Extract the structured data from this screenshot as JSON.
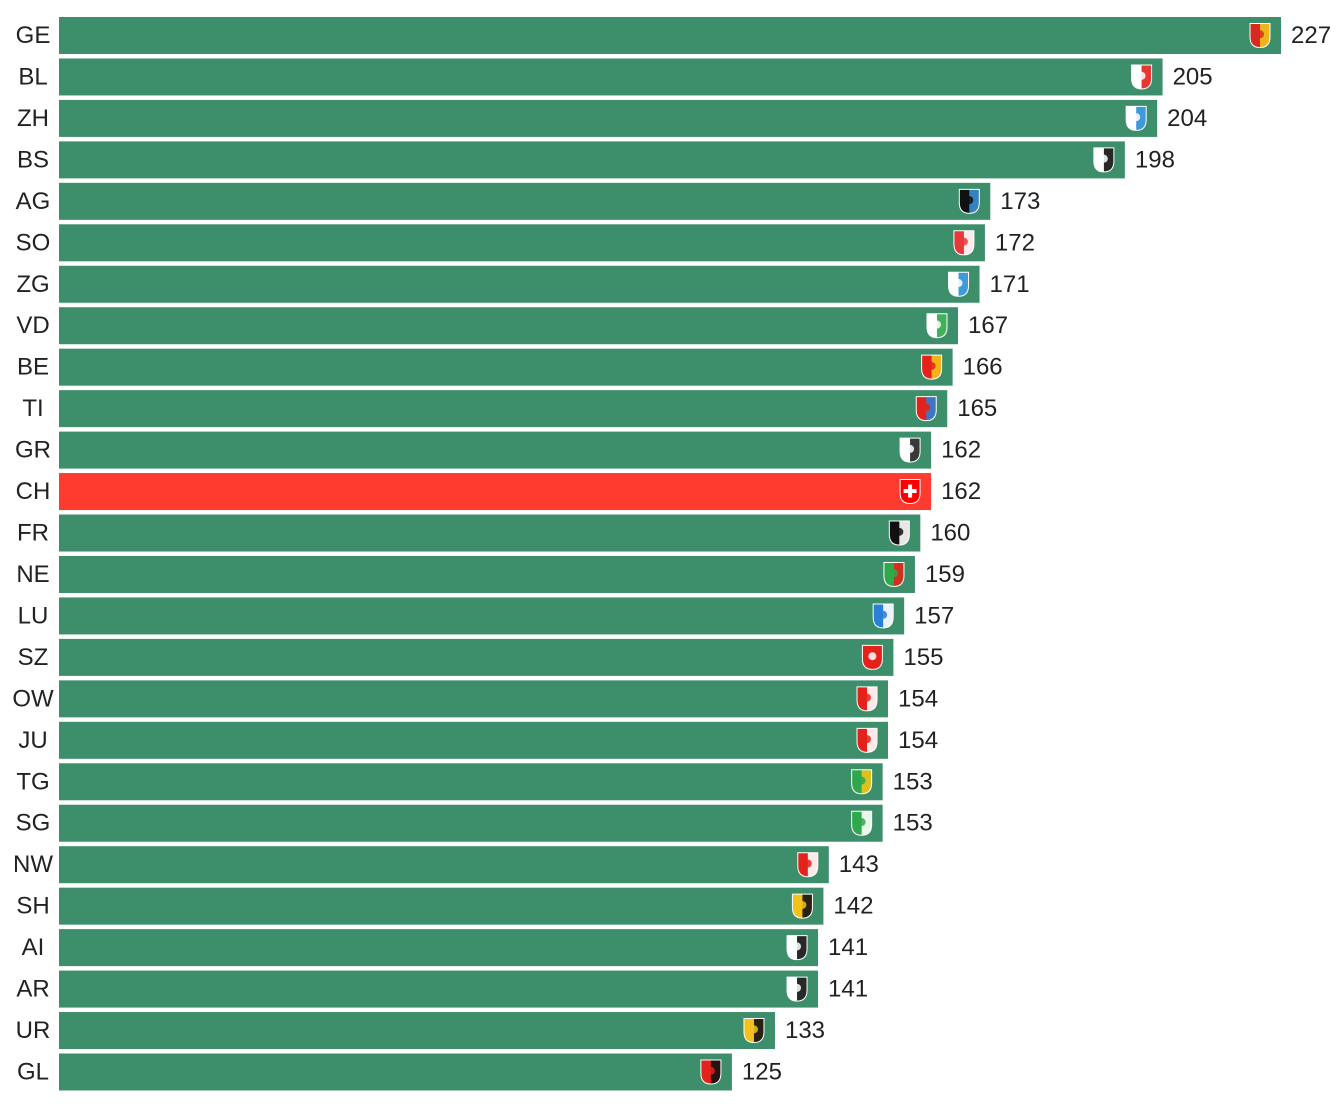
{
  "chart_data": {
    "type": "bar",
    "orientation": "horizontal",
    "title": "",
    "xlabel": "",
    "ylabel": "",
    "grid": false,
    "legend": "none",
    "xlim": [
      0,
      227
    ],
    "default_color": "#3d8f6b",
    "highlight_color": "#ff3b30",
    "highlight_category": "CH",
    "categories": [
      "GE",
      "BL",
      "ZH",
      "BS",
      "AG",
      "SO",
      "ZG",
      "VD",
      "BE",
      "TI",
      "GR",
      "CH",
      "FR",
      "NE",
      "LU",
      "SZ",
      "OW",
      "JU",
      "TG",
      "SG",
      "NW",
      "SH",
      "AI",
      "AR",
      "UR",
      "GL"
    ],
    "values": [
      227,
      205,
      204,
      198,
      173,
      172,
      171,
      167,
      166,
      165,
      162,
      162,
      160,
      159,
      157,
      155,
      154,
      154,
      153,
      153,
      143,
      142,
      141,
      141,
      133,
      125
    ],
    "value_labels": [
      "227",
      "205",
      "204",
      "198",
      "173",
      "172",
      "171",
      "167",
      "166",
      "165",
      "162",
      "162",
      "160",
      "159",
      "157",
      "155",
      "154",
      "154",
      "153",
      "153",
      "143",
      "142",
      "141",
      "141",
      "133",
      "125"
    ],
    "icons": [
      "coat-of-arms-ge-icon",
      "coat-of-arms-bl-icon",
      "coat-of-arms-zh-icon",
      "coat-of-arms-bs-icon",
      "coat-of-arms-ag-icon",
      "coat-of-arms-so-icon",
      "coat-of-arms-zg-icon",
      "coat-of-arms-vd-icon",
      "coat-of-arms-be-icon",
      "coat-of-arms-ti-icon",
      "coat-of-arms-gr-icon",
      "swiss-cross-icon",
      "coat-of-arms-fr-icon",
      "coat-of-arms-ne-icon",
      "coat-of-arms-lu-icon",
      "coat-of-arms-sz-icon",
      "coat-of-arms-ow-icon",
      "coat-of-arms-ju-icon",
      "coat-of-arms-tg-icon",
      "coat-of-arms-sg-icon",
      "coat-of-arms-nw-icon",
      "coat-of-arms-sh-icon",
      "coat-of-arms-ai-icon",
      "coat-of-arms-ar-icon",
      "coat-of-arms-ur-icon",
      "coat-of-arms-gl-icon"
    ],
    "icon_colors": [
      [
        "#d62a22",
        "#f2c21b"
      ],
      [
        "#ffffff",
        "#e32219"
      ],
      [
        "#ffffff",
        "#2a8fd6"
      ],
      [
        "#ffffff",
        "#111111"
      ],
      [
        "#111111",
        "#3a8fd6"
      ],
      [
        "#e63a3a",
        "#ffffff"
      ],
      [
        "#ffffff",
        "#2a8fd6"
      ],
      [
        "#ffffff",
        "#2ea84a"
      ],
      [
        "#e3221b",
        "#f2c21b"
      ],
      [
        "#e3221b",
        "#2a7fd6"
      ],
      [
        "#ffffff",
        "#222222"
      ],
      [
        "#ff0000",
        "#ffffff"
      ],
      [
        "#111111",
        "#ffffff"
      ],
      [
        "#2ea84a",
        "#e3221b"
      ],
      [
        "#2a7fd6",
        "#ffffff"
      ],
      [
        "#e3221b",
        "#e3221b"
      ],
      [
        "#e3221b",
        "#ffffff"
      ],
      [
        "#e3221b",
        "#ffffff"
      ],
      [
        "#2ea84a",
        "#f2c21b"
      ],
      [
        "#2ea84a",
        "#ffffff"
      ],
      [
        "#e3221b",
        "#ffffff"
      ],
      [
        "#f2c21b",
        "#111111"
      ],
      [
        "#ffffff",
        "#111111"
      ],
      [
        "#ffffff",
        "#111111"
      ],
      [
        "#f2c21b",
        "#111111"
      ],
      [
        "#e3221b",
        "#111111"
      ]
    ]
  }
}
